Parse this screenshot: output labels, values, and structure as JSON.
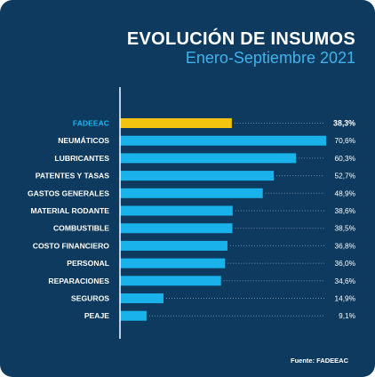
{
  "title": "EVOLUCIÓN DE INSUMOS",
  "subtitle": "Enero-Septiembre 2021",
  "source": "Fuente: FADEEAC",
  "colors": {
    "background": "#0e3a5f",
    "bar": "#1ab2ea",
    "highlight": "#f2c30f",
    "axis": "#ffffff",
    "dots": "#6f8aa3"
  },
  "chart_data": {
    "type": "bar",
    "orientation": "horizontal",
    "categories": [
      "FADEEAC",
      "NEUMÁTICOS",
      "LUBRICANTES",
      "PATENTES Y TASAS",
      "GASTOS GENERALES",
      "MATERIAL RODANTE",
      "COMBUSTIBLE",
      "COSTO FINANCIERO",
      "PERSONAL",
      "REPARACIONES",
      "SEGUROS",
      "PEAJE"
    ],
    "values": [
      38.3,
      70.6,
      60.3,
      52.7,
      48.9,
      38.6,
      38.5,
      36.8,
      36.0,
      34.6,
      14.9,
      9.1
    ],
    "value_labels": [
      "38,3%",
      "70,6%",
      "60,3%",
      "52,7%",
      "48,9%",
      "38,6%",
      "38,5%",
      "36,8%",
      "36,0%",
      "34,6%",
      "14,9%",
      "9,1%"
    ],
    "highlight_index": 0,
    "xlim": [
      0,
      70.6
    ]
  }
}
